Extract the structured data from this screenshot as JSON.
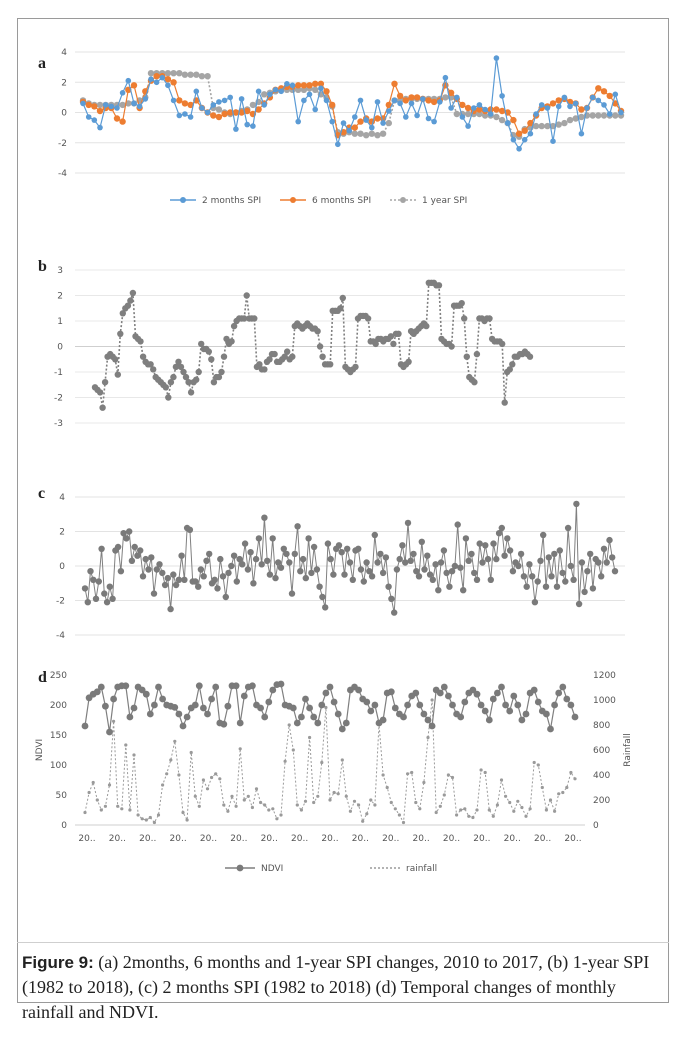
{
  "caption": {
    "label": "Figure 9:",
    "text": " (a) 2months, 6 months and 1-year SPI changes, 2010 to 2017, (b) 1-year SPI (1982 to 2018), (c) 2 months SPI (1982 to 2018) (d) Temporal changes of monthly rainfall and NDVI."
  },
  "chart_data": [
    {
      "panel": "a",
      "type": "line",
      "yticks": [
        "4",
        "2",
        "0",
        "-2",
        "-4"
      ],
      "ylim": [
        -4,
        4
      ],
      "x": [
        0,
        1,
        2,
        3,
        4,
        5,
        6,
        7,
        8,
        9,
        10,
        11,
        12,
        13,
        14,
        15,
        16,
        17,
        18,
        19,
        20,
        21,
        22,
        23,
        24,
        25,
        26,
        27,
        28,
        29,
        30,
        31,
        32,
        33,
        34,
        35,
        36,
        37,
        38,
        39,
        40,
        41,
        42,
        43,
        44,
        45,
        46,
        47,
        48,
        49,
        50,
        51,
        52,
        53,
        54,
        55,
        56,
        57,
        58,
        59,
        60,
        61,
        62,
        63,
        64,
        65,
        66,
        67,
        68,
        69,
        70,
        71,
        72,
        73,
        74,
        75,
        76,
        77,
        78,
        79,
        80,
        81,
        82,
        83,
        84,
        85,
        86,
        87,
        88,
        89,
        90,
        91,
        92,
        93,
        94,
        95
      ],
      "series": [
        {
          "name": "2 months SPI",
          "color": "#5b9bd5",
          "values": [
            0.6,
            -0.3,
            -0.5,
            -1.0,
            0.5,
            0.4,
            0.3,
            1.3,
            2.1,
            0.6,
            0.4,
            0.9,
            2.2,
            2.0,
            2.3,
            1.8,
            0.8,
            -0.2,
            -0.1,
            -0.3,
            1.4,
            0.3,
            0.0,
            0.5,
            0.7,
            0.8,
            1.0,
            -1.1,
            0.9,
            -0.8,
            -0.9,
            1.4,
            0.5,
            1.2,
            1.5,
            1.4,
            1.9,
            1.8,
            -0.6,
            0.8,
            1.2,
            0.2,
            1.6,
            0.8,
            -0.6,
            -2.1,
            -0.7,
            -1.2,
            -0.3,
            0.8,
            -0.5,
            -1.0,
            0.7,
            -0.7,
            0.1,
            0.8,
            0.6,
            -0.3,
            0.6,
            -0.2,
            0.9,
            -0.4,
            -0.6,
            0.7,
            2.3,
            0.3,
            1.0,
            -0.3,
            -0.9,
            0.3,
            0.5,
            0.2,
            -0.1,
            3.6,
            1.1,
            -0.7,
            -1.8,
            -2.4,
            -1.8,
            -1.4,
            -0.1,
            0.5,
            0.3,
            -1.9,
            0.4,
            1.0,
            0.4,
            0.6,
            -1.4,
            0.3,
            1.0,
            0.8,
            0.5,
            -0.1,
            1.2,
            0.0
          ]
        },
        {
          "name": "6 months SPI",
          "color": "#ed7d31",
          "values": [
            0.7,
            0.5,
            0.4,
            0.1,
            0.3,
            0.3,
            -0.4,
            -0.6,
            1.5,
            1.8,
            0.3,
            1.4,
            2.1,
            2.4,
            2.4,
            2.2,
            2.0,
            0.8,
            0.6,
            0.5,
            0.8,
            0.3,
            0.0,
            -0.2,
            -0.3,
            -0.1,
            0.0,
            0.0,
            0.0,
            0.1,
            -0.1,
            0.2,
            0.6,
            1.0,
            1.5,
            1.6,
            1.7,
            1.7,
            1.8,
            1.8,
            1.8,
            1.9,
            1.9,
            1.4,
            0.5,
            -1.5,
            -1.3,
            -1.0,
            -1.0,
            -0.6,
            -0.4,
            -0.6,
            -0.4,
            -0.4,
            0.5,
            1.9,
            1.1,
            0.8,
            1.0,
            1.0,
            0.9,
            0.8,
            0.7,
            0.8,
            1.8,
            1.3,
            0.9,
            0.5,
            0.3,
            0.1,
            0.2,
            0.1,
            0.2,
            0.2,
            0.1,
            0.0,
            -0.5,
            -1.4,
            -1.2,
            -0.7,
            -0.2,
            0.3,
            0.4,
            0.6,
            0.8,
            0.9,
            0.7,
            0.6,
            0.2,
            0.3,
            1.0,
            1.6,
            1.4,
            1.1,
            0.6,
            0.1
          ]
        },
        {
          "name": "1 year SPI",
          "color": "#a5a5a5",
          "values": [
            0.8,
            0.6,
            0.5,
            0.5,
            0.5,
            0.5,
            0.5,
            0.5,
            0.6,
            0.6,
            0.8,
            1.0,
            2.6,
            2.6,
            2.6,
            2.6,
            2.6,
            2.6,
            2.5,
            2.5,
            2.5,
            2.4,
            2.4,
            0.3,
            0.2,
            0.0,
            -0.1,
            0.0,
            0.1,
            0.2,
            0.5,
            0.7,
            1.2,
            1.3,
            1.4,
            1.5,
            1.5,
            1.5,
            1.5,
            1.5,
            1.6,
            1.5,
            1.2,
            1.0,
            0.4,
            -1.3,
            -1.4,
            -1.3,
            -1.4,
            -1.4,
            -1.5,
            -1.4,
            -1.5,
            -1.4,
            -0.7,
            0.8,
            0.8,
            0.9,
            0.9,
            0.9,
            0.9,
            0.9,
            0.9,
            0.9,
            1.0,
            1.0,
            -0.1,
            -0.1,
            -0.1,
            -0.1,
            -0.1,
            -0.2,
            -0.2,
            -0.3,
            -0.5,
            -0.7,
            -1.5,
            -1.6,
            -1.1,
            -1.0,
            -0.9,
            -0.9,
            -0.9,
            -0.9,
            -0.8,
            -0.7,
            -0.5,
            -0.4,
            -0.3,
            -0.2,
            -0.2,
            -0.2,
            -0.2,
            -0.2,
            -0.2,
            -0.2
          ]
        }
      ]
    },
    {
      "panel": "b",
      "type": "line",
      "yticks": [
        "3",
        "2",
        "1",
        "0",
        "-1",
        "-2",
        "-3"
      ],
      "ylim": [
        -3,
        3
      ],
      "series": [
        {
          "name": "1-year SPI",
          "color": "#7f7f7f",
          "values": [
            -1.6,
            -1.7,
            -1.8,
            -2.4,
            -1.4,
            -0.4,
            -0.3,
            -0.4,
            -0.5,
            -1.1,
            0.5,
            1.3,
            1.5,
            1.6,
            1.8,
            2.1,
            0.4,
            0.3,
            0.2,
            -0.4,
            -0.6,
            -0.7,
            -0.7,
            -0.9,
            -1.2,
            -1.3,
            -1.4,
            -1.5,
            -1.6,
            -2.0,
            -1.4,
            -1.2,
            -0.8,
            -0.6,
            -0.8,
            -1.0,
            -1.2,
            -1.4,
            -1.8,
            -1.4,
            -1.3,
            -1.0,
            0.1,
            -0.1,
            -0.1,
            -0.2,
            -0.5,
            -1.4,
            -1.2,
            -1.2,
            -1.0,
            -0.4,
            0.3,
            0.1,
            0.2,
            0.8,
            1.0,
            1.1,
            1.1,
            1.1,
            2.0,
            1.1,
            1.1,
            1.1,
            -0.8,
            -0.7,
            -0.9,
            -0.9,
            -0.6,
            -0.5,
            -0.3,
            -0.3,
            -0.6,
            -0.6,
            -0.5,
            -0.4,
            -0.2,
            -0.5,
            -0.4,
            0.8,
            0.9,
            0.8,
            0.7,
            0.8,
            0.9,
            0.8,
            0.7,
            0.7,
            0.6,
            0.0,
            -0.4,
            -0.7,
            -0.7,
            -0.7,
            1.4,
            1.4,
            1.4,
            1.5,
            1.9,
            -0.8,
            -0.9,
            -1.0,
            -0.9,
            -0.8,
            1.1,
            1.2,
            1.2,
            1.2,
            1.1,
            0.2,
            0.2,
            0.1,
            0.3,
            0.3,
            0.2,
            0.3,
            0.3,
            0.4,
            0.1,
            0.5,
            0.5,
            -0.7,
            -0.8,
            -0.7,
            -0.6,
            0.6,
            0.5,
            0.6,
            0.7,
            0.8,
            0.9,
            0.8,
            2.5,
            2.5,
            2.5,
            2.4,
            2.4,
            0.3,
            0.2,
            0.1,
            0.1,
            0.0,
            1.6,
            1.6,
            1.6,
            1.7,
            1.1,
            -0.4,
            -1.2,
            -1.3,
            -1.4,
            -0.3,
            1.1,
            1.1,
            1.0,
            1.1,
            1.1,
            0.3,
            0.2,
            0.2,
            0.2,
            0.1,
            -2.2,
            -1.0,
            -0.9,
            -0.7,
            -0.4,
            -0.4,
            -0.3,
            -0.3,
            -0.2,
            -0.3,
            -0.4
          ]
        }
      ]
    },
    {
      "panel": "c",
      "type": "line",
      "yticks": [
        "4",
        "2",
        "0",
        "-2",
        "-4"
      ],
      "ylim": [
        -4,
        4
      ],
      "series": [
        {
          "name": "2 months SPI",
          "color": "#808080",
          "values": [
            -1.3,
            -2.1,
            -0.3,
            -0.8,
            -1.9,
            -0.9,
            1.0,
            -1.6,
            -2.1,
            -1.2,
            -1.9,
            0.9,
            1.1,
            -0.3,
            1.9,
            1.6,
            2.0,
            0.3,
            1.1,
            0.6,
            0.9,
            -0.6,
            0.4,
            -0.2,
            0.5,
            -1.6,
            -0.2,
            0.1,
            -0.4,
            -1.1,
            -0.7,
            -2.5,
            -0.5,
            -1.1,
            -0.8,
            0.6,
            -0.8,
            2.2,
            2.1,
            -0.9,
            -0.9,
            -1.2,
            -0.2,
            -0.6,
            0.3,
            0.7,
            -1.0,
            -0.8,
            -1.3,
            0.4,
            -0.6,
            -1.8,
            -0.4,
            0.0,
            0.6,
            -0.9,
            0.4,
            0.1,
            1.3,
            -0.2,
            0.8,
            -1.0,
            0.4,
            1.6,
            0.1,
            2.8,
            0.3,
            -0.5,
            1.6,
            -0.7,
            0.2,
            -0.1,
            1.0,
            0.7,
            0.2,
            -1.6,
            0.7,
            2.3,
            -0.3,
            0.4,
            -0.7,
            1.6,
            -0.4,
            1.1,
            -0.2,
            -1.2,
            -1.8,
            -2.4,
            1.3,
            0.4,
            -0.5,
            1.0,
            1.2,
            0.8,
            -0.5,
            1.0,
            0.2,
            -0.8,
            0.9,
            1.0,
            -0.2,
            -0.9,
            0.2,
            -0.3,
            -0.6,
            1.8,
            0.2,
            0.7,
            -0.4,
            0.5,
            -1.2,
            -1.9,
            -2.7,
            -0.2,
            0.4,
            1.2,
            0.2,
            2.5,
            0.3,
            0.7,
            -0.3,
            -0.6,
            1.4,
            -0.2,
            0.6,
            -0.5,
            -0.8,
            0.1,
            -1.4,
            0.2,
            0.9,
            -0.4,
            -1.2,
            -0.3,
            0.0,
            2.4,
            -0.1,
            -1.4,
            1.6,
            0.3,
            0.7,
            -0.4,
            -0.8,
            1.3,
            0.2,
            1.2,
            0.4,
            -0.8,
            1.3,
            0.4,
            1.9,
            2.2,
            0.6,
            1.6,
            0.9,
            -0.3,
            0.2,
            0.0,
            0.7,
            -0.6,
            -1.2,
            0.1,
            -0.6,
            -2.1,
            -0.9,
            0.3,
            1.8,
            -1.2,
            0.5,
            -0.6,
            0.7,
            -1.2,
            0.9,
            -0.4,
            -0.9,
            2.2,
            0.0,
            -0.8,
            3.6,
            -2.2,
            0.2,
            -1.5,
            -0.3,
            0.7,
            -1.3,
            0.4,
            0.2,
            -0.6,
            1.0,
            0.2,
            1.5,
            0.5,
            -0.3
          ]
        }
      ]
    },
    {
      "panel": "d",
      "type": "line",
      "yticks_left": [
        "250",
        "200",
        "150",
        "100",
        "50",
        "0"
      ],
      "yticks_right": [
        "1200",
        "1000",
        "800",
        "600",
        "400",
        "200",
        "0"
      ],
      "ylabel_left": "NDVI",
      "ylabel_right": "Rainfall",
      "ylim_left": [
        0,
        250
      ],
      "ylim_right": [
        0,
        1200
      ],
      "xtick_label": "20..",
      "xtick_count": 17,
      "series": [
        {
          "name": "NDVI",
          "color": "#7f7f7f",
          "axis": "left",
          "values": [
            165,
            212,
            218,
            222,
            230,
            198,
            155,
            210,
            230,
            232,
            232,
            180,
            195,
            230,
            225,
            218,
            185,
            200,
            230,
            210,
            200,
            198,
            196,
            185,
            165,
            180,
            195,
            200,
            232,
            195,
            185,
            210,
            230,
            170,
            168,
            198,
            232,
            232,
            170,
            215,
            230,
            232,
            200,
            195,
            180,
            205,
            225,
            234,
            235,
            200,
            198,
            195,
            170,
            180,
            210,
            195,
            180,
            170,
            200,
            220,
            230,
            205,
            185,
            160,
            170,
            225,
            230,
            225,
            210,
            205,
            190,
            200,
            170,
            175,
            220,
            222,
            195,
            185,
            180,
            200,
            215,
            220,
            200,
            185,
            175,
            165,
            225,
            220,
            230,
            215,
            200,
            185,
            180,
            205,
            220,
            225,
            218,
            200,
            190,
            175,
            210,
            220,
            230,
            200,
            190,
            215,
            200,
            175,
            185,
            220,
            225,
            205,
            190,
            185,
            160,
            200,
            220,
            230,
            210,
            200,
            180
          ]
        },
        {
          "name": "rainfall",
          "color": "#a0a0a0",
          "axis": "right",
          "values": [
            100,
            260,
            340,
            200,
            120,
            150,
            320,
            830,
            150,
            130,
            640,
            120,
            560,
            80,
            50,
            40,
            60,
            20,
            80,
            320,
            410,
            520,
            670,
            400,
            100,
            40,
            580,
            230,
            150,
            360,
            290,
            380,
            410,
            370,
            160,
            110,
            230,
            150,
            610,
            200,
            230,
            140,
            290,
            180,
            160,
            120,
            130,
            50,
            80,
            510,
            800,
            600,
            160,
            120,
            190,
            700,
            180,
            230,
            500,
            940,
            200,
            260,
            250,
            520,
            230,
            110,
            190,
            160,
            30,
            90,
            200,
            160,
            810,
            400,
            300,
            180,
            130,
            80,
            20,
            410,
            420,
            180,
            130,
            340,
            700,
            1000,
            100,
            150,
            240,
            400,
            380,
            80,
            120,
            130,
            70,
            60,
            120,
            440,
            420,
            120,
            70,
            160,
            360,
            230,
            180,
            110,
            190,
            140,
            70,
            130,
            500,
            480,
            300,
            120,
            200,
            110,
            250,
            260,
            300,
            420,
            370
          ]
        }
      ]
    }
  ],
  "panels": {
    "a": {
      "label": "a"
    },
    "b": {
      "label": "b"
    },
    "c": {
      "label": "c"
    },
    "d": {
      "label": "d"
    }
  },
  "legend_a": [
    "2 months SPI",
    "6 months SPI",
    "1 year SPI"
  ],
  "legend_d": [
    "NDVI",
    "rainfall"
  ]
}
